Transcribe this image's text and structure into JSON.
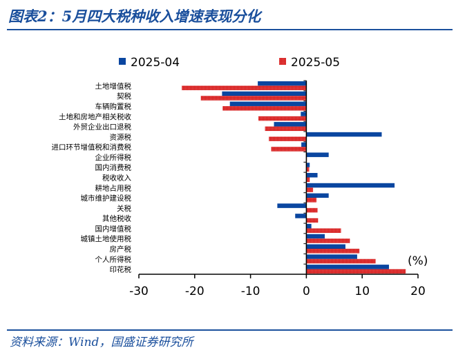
{
  "title": "图表2：5月四大税种收入增速表现分化",
  "source": "资料来源：Wind，国盛证券研究所",
  "chart_data": {
    "type": "bar",
    "orientation": "horizontal",
    "unit_label": "(%)",
    "xlim": [
      -30,
      20
    ],
    "xticks": [
      -30,
      -20,
      -10,
      0,
      10,
      20
    ],
    "legend_placement": "top",
    "categories": [
      "土地增值税",
      "契税",
      "车辆购置税",
      "土地和房地产相关税收",
      "外贸企业出口退税",
      "资源税",
      "进口环节增值税和消费税",
      "企业所得税",
      "国内消费税",
      "税收收入",
      "耕地占用税",
      "城市维护建设税",
      "关税",
      "其他税收",
      "国内增值税",
      "城镇土地使用税",
      "房产税",
      "个人所得税",
      "印花税"
    ],
    "series": [
      {
        "name": "2025-04",
        "color": "#0a46a0",
        "values": [
          -8.7,
          -15.1,
          -13.7,
          -1.0,
          -5.8,
          13.5,
          -0.9,
          4.0,
          0.6,
          2.0,
          15.8,
          4.0,
          -5.2,
          -2.0,
          0.9,
          3.3,
          7.0,
          9.1,
          14.8
        ]
      },
      {
        "name": "2025-05",
        "color": "#d41a1a",
        "values": [
          -22.3,
          -18.9,
          -15.0,
          -8.6,
          -7.4,
          -6.7,
          -6.3,
          0.1,
          0.5,
          0.6,
          1.2,
          1.8,
          2.0,
          2.1,
          6.2,
          7.8,
          9.5,
          12.4,
          17.8
        ]
      }
    ]
  }
}
